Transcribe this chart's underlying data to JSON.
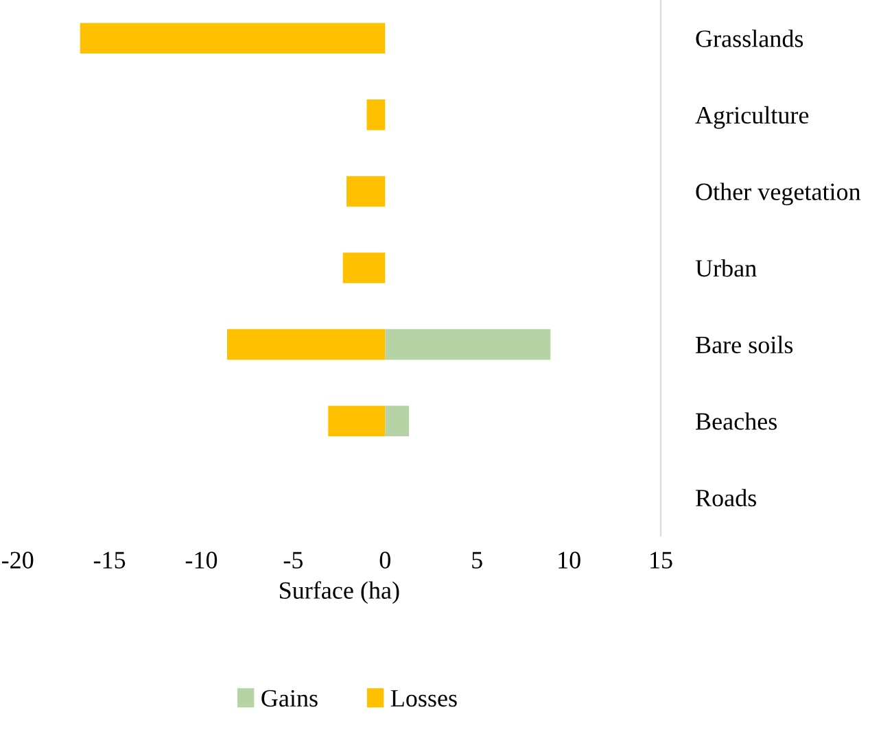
{
  "chart_data": {
    "type": "bar",
    "orientation": "horizontal",
    "xlabel": "Surface (ha)",
    "categories": [
      "Grasslands",
      "Agriculture",
      "Other vegetation",
      "Urban",
      "Bare soils",
      "Beaches",
      "Roads"
    ],
    "series": [
      {
        "name": "Gains",
        "color": "#b5d3a5",
        "values": [
          0,
          0,
          0,
          0,
          9.0,
          1.3,
          0
        ]
      },
      {
        "name": "Losses",
        "color": "#ffc000",
        "values": [
          -16.6,
          -1.0,
          -2.1,
          -2.3,
          -8.6,
          -3.1,
          0
        ]
      }
    ],
    "xlim": [
      -20,
      15
    ],
    "xticks": [
      -20,
      -15,
      -10,
      -5,
      0,
      5,
      10,
      15
    ],
    "grid": false,
    "legend": "bottom"
  }
}
